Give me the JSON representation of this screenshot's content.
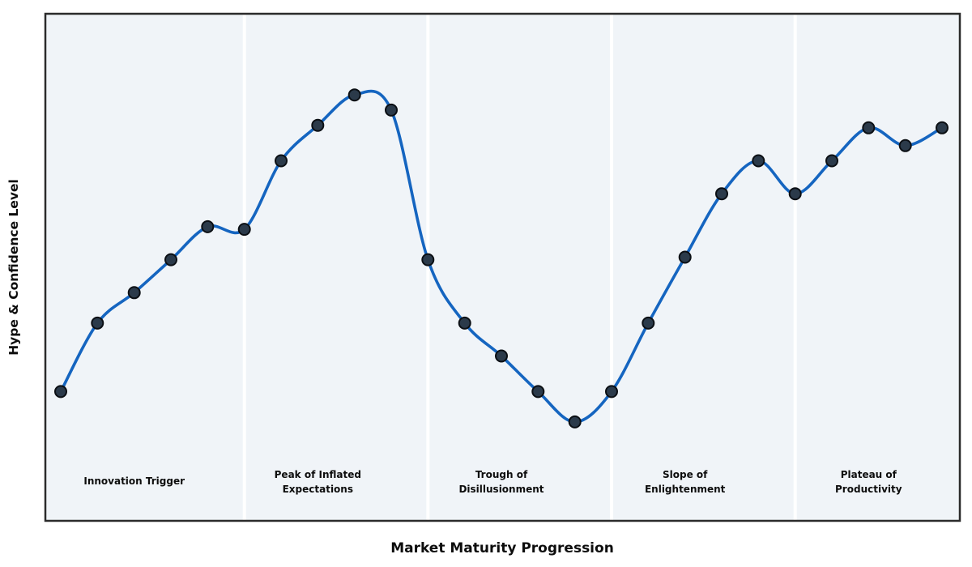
{
  "chart_data": {
    "type": "line",
    "xlabel": "Market Maturity Progression",
    "ylabel": "Hype & Confidence Level",
    "x": [
      0,
      1,
      2,
      3,
      4,
      5,
      6,
      7,
      8,
      9,
      10,
      11,
      12,
      13,
      14,
      15,
      16,
      17,
      18,
      19,
      20,
      21,
      22,
      23,
      24
    ],
    "values": [
      25.5,
      39,
      45,
      51.5,
      58,
      57.5,
      71,
      78,
      84,
      81,
      51.5,
      39,
      32.5,
      25.5,
      19.5,
      25.5,
      39,
      52,
      64.5,
      71,
      64.5,
      71,
      77.5,
      74,
      77.5
    ],
    "ylim": [
      0,
      100
    ],
    "grid": false,
    "legend": "none",
    "marker": "circle",
    "smooth": true,
    "phases": [
      {
        "label": "Innovation Trigger",
        "lines": [
          "Innovation Trigger"
        ],
        "center_index": 2
      },
      {
        "label": "Peak of Inflated Expectations",
        "lines": [
          "Peak of Inflated",
          "Expectations"
        ],
        "center_index": 7
      },
      {
        "label": "Trough of Disillusionment",
        "lines": [
          "Trough of",
          "Disillusionment"
        ],
        "center_index": 12
      },
      {
        "label": "Slope of Enlightenment",
        "lines": [
          "Slope of",
          "Enlightenment"
        ],
        "center_index": 17
      },
      {
        "label": "Plateau of Productivity",
        "lines": [
          "Plateau of",
          "Productivity"
        ],
        "center_index": 22
      }
    ],
    "phase_separators_x": [
      5,
      10,
      15,
      20
    ],
    "colors": {
      "line": "#1565c0",
      "marker_fill": "#2b3a4a",
      "marker_edge": "#0b0f14",
      "plot_bg": "#f0f4f8",
      "separator": "#ffffff",
      "frame": "#2b2b2b",
      "text": "#0d0d0d",
      "page_bg": "#ffffff"
    }
  }
}
